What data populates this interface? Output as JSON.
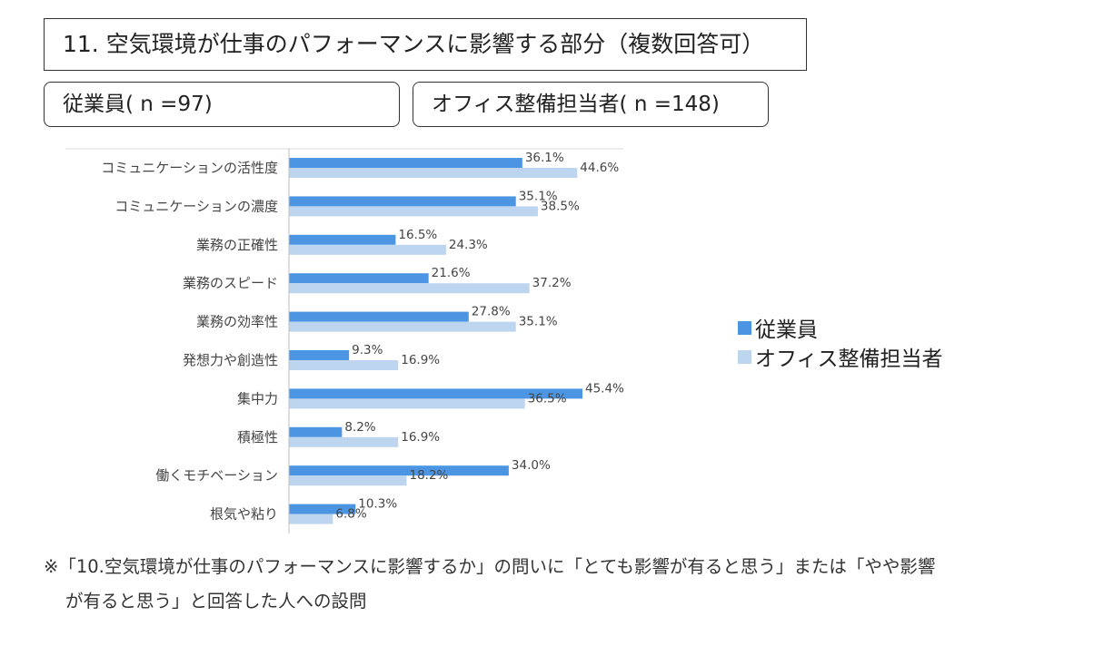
{
  "title": "11. 空気環境が仕事のパフォーマンスに影響する部分（複数回答可）",
  "groups": {
    "employees": "従業員( n =97)",
    "office_managers": "オフィス整備担当者( n =148)"
  },
  "legend": {
    "employees": "従業員",
    "office_managers": "オフィス整備担当者"
  },
  "colors": {
    "employees": "#4c95e3",
    "office_managers": "#bdd5ee"
  },
  "chart_data": {
    "type": "bar",
    "orientation": "horizontal",
    "categories": [
      "コミュニケーションの活性度",
      "コミュニケーションの濃度",
      "業務の正確性",
      "業務のスピード",
      "業務の効率性",
      "発想力や創造性",
      "集中力",
      "積極性",
      "働くモチベーション",
      "根気や粘り"
    ],
    "series": [
      {
        "name": "従業員",
        "values": [
          36.1,
          35.1,
          16.5,
          21.6,
          27.8,
          9.3,
          45.4,
          8.2,
          34.0,
          10.3
        ]
      },
      {
        "name": "オフィス整備担当者",
        "values": [
          44.6,
          38.5,
          24.3,
          37.2,
          35.1,
          16.9,
          36.5,
          16.9,
          18.2,
          6.8
        ]
      }
    ],
    "value_labels": [
      [
        "36.1%",
        "35.1%",
        "16.5%",
        "21.6%",
        "27.8%",
        "9.3%",
        "45.4%",
        "8.2%",
        "34.0%",
        "10.3%"
      ],
      [
        "44.6%",
        "38.5%",
        "24.3%",
        "37.2%",
        "35.1%",
        "16.9%",
        "36.5%",
        "16.9%",
        "18.2%",
        "6.8%"
      ]
    ],
    "xlim": [
      0,
      52
    ],
    "unit": "%",
    "legend_position": "right"
  },
  "footnote": {
    "line1": "※「10.空気環境が仕事のパフォーマンスに影響するか」の問いに「とても影響が有ると思う」または「やや影響",
    "line2": "が有ると思う」と回答した人への設問"
  }
}
